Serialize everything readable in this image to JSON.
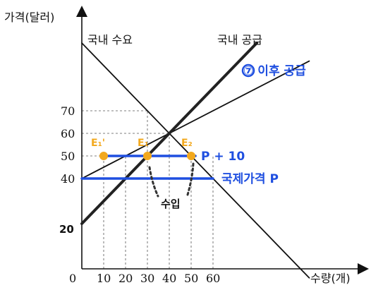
{
  "chart_data": {
    "type": "line",
    "ylabel": "가격(달러)",
    "xlabel": "수량(개)",
    "origin_label": "0",
    "x_ticks": [
      10,
      20,
      30,
      40,
      50,
      60
    ],
    "y_ticks": [
      40,
      50,
      60,
      70
    ],
    "y_extra_label": "20",
    "xlim": [
      0,
      100
    ],
    "ylim": [
      0,
      100
    ],
    "series": [
      {
        "name": "국내 수요",
        "x": [
          0,
          104
        ],
        "y": [
          100,
          -4
        ],
        "color": "#111111"
      },
      {
        "name": "국내 공급",
        "x": [
          0,
          104
        ],
        "y": [
          40,
          92
        ],
        "color": "#111111"
      },
      {
        "name": "이후 공급",
        "x": [
          0,
          20,
          40,
          60,
          80
        ],
        "y": [
          20,
          40,
          60,
          80,
          100
        ],
        "color": "#222222"
      }
    ],
    "price_lines": [
      {
        "label": "국제가격 P",
        "y": 40,
        "x_range": [
          0,
          60
        ],
        "color": "#1f4fe0"
      },
      {
        "label": "P + 10",
        "y": 50,
        "x_range": [
          10,
          50
        ],
        "color": "#1f4fe0"
      }
    ],
    "points": [
      {
        "label": "E₁'",
        "x": 10,
        "y": 50,
        "color": "#f2a81d"
      },
      {
        "label": "E₁",
        "x": 30,
        "y": 50,
        "color": "#f2a81d"
      },
      {
        "label": "E₂",
        "x": 50,
        "y": 50,
        "color": "#f2a81d"
      }
    ],
    "after_supply_label": "⑦ 이후 공급",
    "import_label": "수입",
    "grid_guides": true,
    "colors": {
      "blue": "#1f4fe0",
      "orange": "#f2a81d",
      "black": "#111111"
    }
  }
}
